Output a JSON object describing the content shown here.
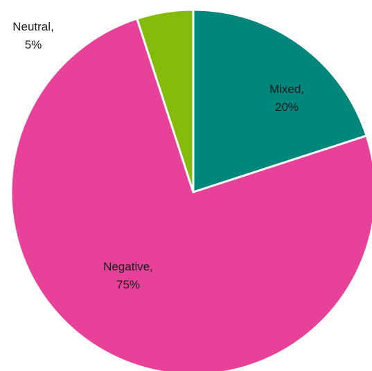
{
  "chart_data": {
    "type": "pie",
    "title": "",
    "categories": [
      "Mixed",
      "Negative",
      "Neutral"
    ],
    "values": [
      20,
      75,
      5
    ],
    "unit": "%",
    "colors": [
      "#00867a",
      "#e8419a",
      "#84bb0a"
    ],
    "labels": [
      {
        "line1": "Mixed,",
        "line2": "20%"
      },
      {
        "line1": "Negative,",
        "line2": "75%"
      },
      {
        "line1": "Neutral,",
        "line2": "5%"
      }
    ],
    "start_angle": "12 o'clock",
    "direction": "clockwise",
    "legend": "none"
  }
}
